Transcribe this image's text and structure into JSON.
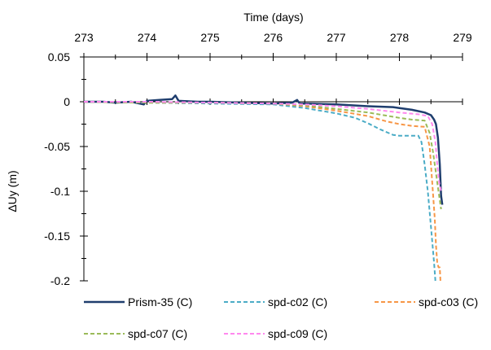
{
  "chart_data": {
    "type": "line",
    "title": "",
    "xlabel": "Time (days)",
    "ylabel": "ΔUy (m)",
    "xlim": [
      273,
      279
    ],
    "ylim": [
      -0.2,
      0.05
    ],
    "x_ticks": [
      "273",
      "274",
      "275",
      "276",
      "277",
      "278",
      "279"
    ],
    "y_ticks": [
      "0.05",
      "0",
      "-0.05",
      "-0.1",
      "-0.15",
      "-0.2"
    ],
    "x_tick_values": [
      273,
      274,
      275,
      276,
      277,
      278,
      279
    ],
    "y_tick_values": [
      0.05,
      0,
      -0.05,
      -0.1,
      -0.15,
      -0.2
    ],
    "x_axis_position": "top",
    "grid": false,
    "legend_position": "bottom",
    "series": [
      {
        "name": "Prism-35 (C)",
        "color": "#1f3e6e",
        "dash": "solid",
        "x": [
          273.0,
          273.3,
          273.5,
          273.75,
          273.95,
          274.0,
          274.2,
          274.4,
          274.45,
          274.5,
          274.8,
          275.0,
          275.5,
          276.0,
          276.3,
          276.38,
          276.42,
          276.5,
          277.0,
          277.5,
          277.9,
          278.0,
          278.2,
          278.4,
          278.5,
          278.55,
          278.58,
          278.61,
          278.64,
          278.66,
          278.68
        ],
        "y": [
          0.0,
          0.0,
          -0.001,
          0.0,
          -0.003,
          0.001,
          0.002,
          0.003,
          0.007,
          0.001,
          0.0,
          0.0,
          -0.001,
          -0.002,
          -0.001,
          0.002,
          -0.002,
          -0.002,
          -0.003,
          -0.005,
          -0.006,
          -0.007,
          -0.009,
          -0.012,
          -0.015,
          -0.02,
          -0.025,
          -0.04,
          -0.07,
          -0.105,
          -0.115
        ]
      },
      {
        "name": "spd-c02 (C)",
        "color": "#4bacc6",
        "dash": "dashed",
        "x": [
          273.0,
          274.0,
          275.0,
          276.0,
          276.5,
          277.0,
          277.3,
          277.5,
          277.7,
          277.9,
          278.0,
          278.2,
          278.3,
          278.35,
          278.4,
          278.45,
          278.5,
          278.55,
          278.57
        ],
        "y": [
          0.0,
          -0.001,
          -0.002,
          -0.003,
          -0.007,
          -0.013,
          -0.018,
          -0.024,
          -0.031,
          -0.037,
          -0.038,
          -0.038,
          -0.038,
          -0.045,
          -0.07,
          -0.1,
          -0.14,
          -0.18,
          -0.2
        ]
      },
      {
        "name": "spd-c03 (C)",
        "color": "#f79646",
        "dash": "dashed",
        "x": [
          273.0,
          274.0,
          275.0,
          276.0,
          276.5,
          277.0,
          277.5,
          277.8,
          278.0,
          278.2,
          278.4,
          278.48,
          278.52,
          278.56,
          278.58,
          278.6,
          278.62,
          278.64,
          278.65
        ],
        "y": [
          0.0,
          -0.001,
          -0.001,
          -0.002,
          -0.005,
          -0.01,
          -0.016,
          -0.022,
          -0.025,
          -0.027,
          -0.028,
          -0.05,
          -0.09,
          -0.13,
          -0.16,
          -0.18,
          -0.185,
          -0.185,
          -0.2
        ]
      },
      {
        "name": "spd-c07 (C)",
        "color": "#9bbb59",
        "dash": "dashed",
        "x": [
          273.0,
          274.0,
          275.0,
          276.0,
          276.5,
          277.0,
          277.5,
          278.0,
          278.2,
          278.4,
          278.48,
          278.53,
          278.57,
          278.6,
          278.63,
          278.66
        ],
        "y": [
          0.0,
          -0.001,
          -0.001,
          -0.002,
          -0.004,
          -0.008,
          -0.012,
          -0.018,
          -0.02,
          -0.021,
          -0.035,
          -0.055,
          -0.075,
          -0.09,
          -0.105,
          -0.12
        ]
      },
      {
        "name": "spd-c09 (C)",
        "color": "#ff88ee",
        "dash": "dashed",
        "x": [
          273.0,
          274.0,
          275.0,
          276.0,
          276.5,
          277.0,
          277.5,
          278.0,
          278.3,
          278.45,
          278.52,
          278.57,
          278.6,
          278.63,
          278.66
        ],
        "y": [
          0.0,
          0.0,
          -0.001,
          -0.002,
          -0.003,
          -0.005,
          -0.008,
          -0.012,
          -0.014,
          -0.016,
          -0.025,
          -0.045,
          -0.07,
          -0.09,
          -0.1
        ]
      }
    ]
  }
}
